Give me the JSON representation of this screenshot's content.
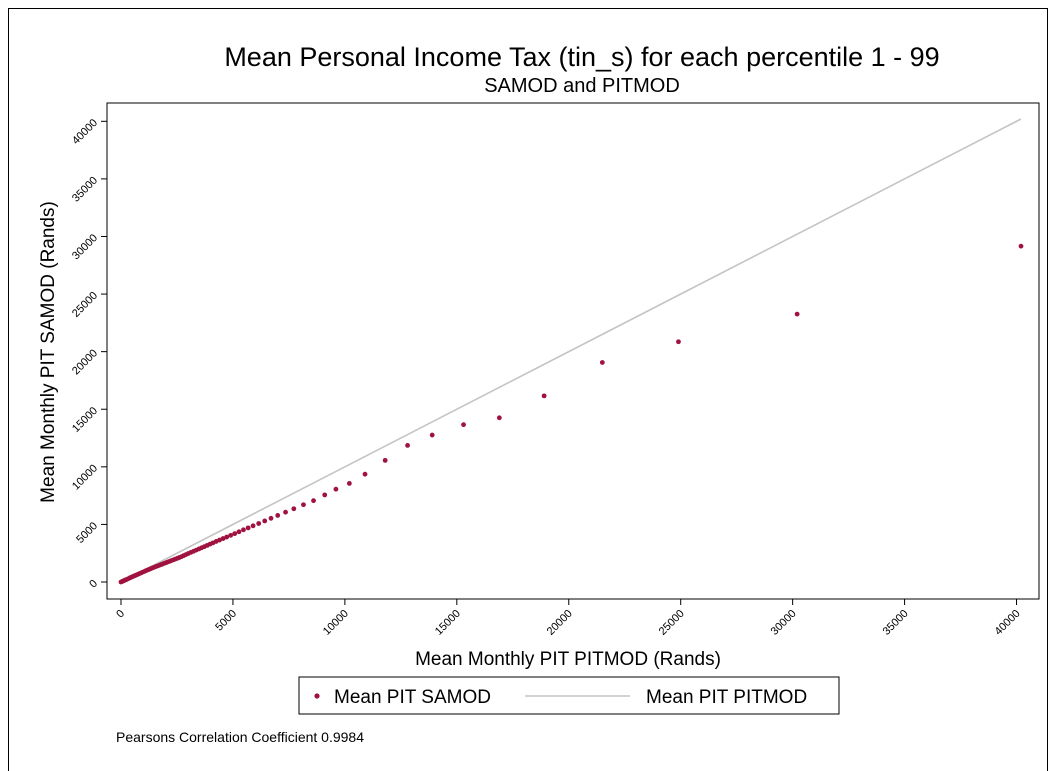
{
  "chart_data": {
    "type": "scatter",
    "title": "Mean Personal Income Tax  (tin_s) for each percentile 1 - 99",
    "subtitle": "SAMOD and PITMOD",
    "xlabel": "Mean Monthly PIT PITMOD (Rands)",
    "ylabel": "Mean Monthly PIT SAMOD (Rands)",
    "xlim": [
      0,
      40500
    ],
    "ylim": [
      0,
      40500
    ],
    "x_ticks": [
      0,
      5000,
      10000,
      15000,
      20000,
      25000,
      30000,
      35000,
      40000
    ],
    "y_ticks": [
      0,
      5000,
      10000,
      15000,
      20000,
      25000,
      30000,
      35000,
      40000
    ],
    "x_tick_labels": [
      "0",
      "5000",
      "10000",
      "15000",
      "20000",
      "25000",
      "30000",
      "35000",
      "40000"
    ],
    "y_tick_labels": [
      "0",
      "5000",
      "10000",
      "15000",
      "20000",
      "25000",
      "30000",
      "35000",
      "40000"
    ],
    "grid": false,
    "legend_position": "bottom",
    "series": [
      {
        "name": "Mean PIT SAMOD",
        "kind": "scatter",
        "color": "#a0123f",
        "x": [
          0,
          50,
          100,
          150,
          200,
          260,
          320,
          380,
          440,
          500,
          570,
          640,
          710,
          780,
          850,
          920,
          1000,
          1080,
          1160,
          1240,
          1320,
          1400,
          1480,
          1560,
          1640,
          1720,
          1800,
          1880,
          1960,
          2040,
          2120,
          2200,
          2280,
          2360,
          2440,
          2520,
          2600,
          2700,
          2800,
          2900,
          3000,
          3120,
          3240,
          3360,
          3480,
          3600,
          3720,
          3850,
          3980,
          4110,
          4250,
          4400,
          4560,
          4720,
          4900,
          5080,
          5270,
          5470,
          5680,
          5900,
          6150,
          6420,
          6700,
          7000,
          7350,
          7720,
          8150,
          8600,
          9100,
          9600,
          10200,
          10900,
          11800,
          12800,
          13900,
          15300,
          16900,
          18900,
          21500,
          24900,
          30200,
          40200
        ],
        "y": [
          0,
          45,
          90,
          135,
          180,
          230,
          285,
          340,
          395,
          450,
          510,
          570,
          630,
          690,
          750,
          810,
          880,
          950,
          1020,
          1085,
          1150,
          1215,
          1280,
          1340,
          1400,
          1460,
          1520,
          1580,
          1640,
          1700,
          1760,
          1820,
          1880,
          1940,
          2000,
          2060,
          2120,
          2200,
          2290,
          2380,
          2470,
          2570,
          2670,
          2770,
          2870,
          2970,
          3070,
          3180,
          3290,
          3400,
          3520,
          3640,
          3770,
          3900,
          4050,
          4200,
          4360,
          4530,
          4700,
          4880,
          5080,
          5300,
          5530,
          5780,
          6060,
          6360,
          6710,
          7060,
          7560,
          8060,
          8560,
          9360,
          10560,
          11860,
          12760,
          13660,
          14260,
          16160,
          19060,
          20860,
          23260,
          29160
        ]
      },
      {
        "name": "Mean PIT PITMOD",
        "kind": "line",
        "color": "#c4c4c4",
        "x": [
          0,
          40200
        ],
        "y": [
          0,
          40200
        ]
      }
    ],
    "annotation": "Pearsons Correlation Coefficient 0.9984"
  }
}
